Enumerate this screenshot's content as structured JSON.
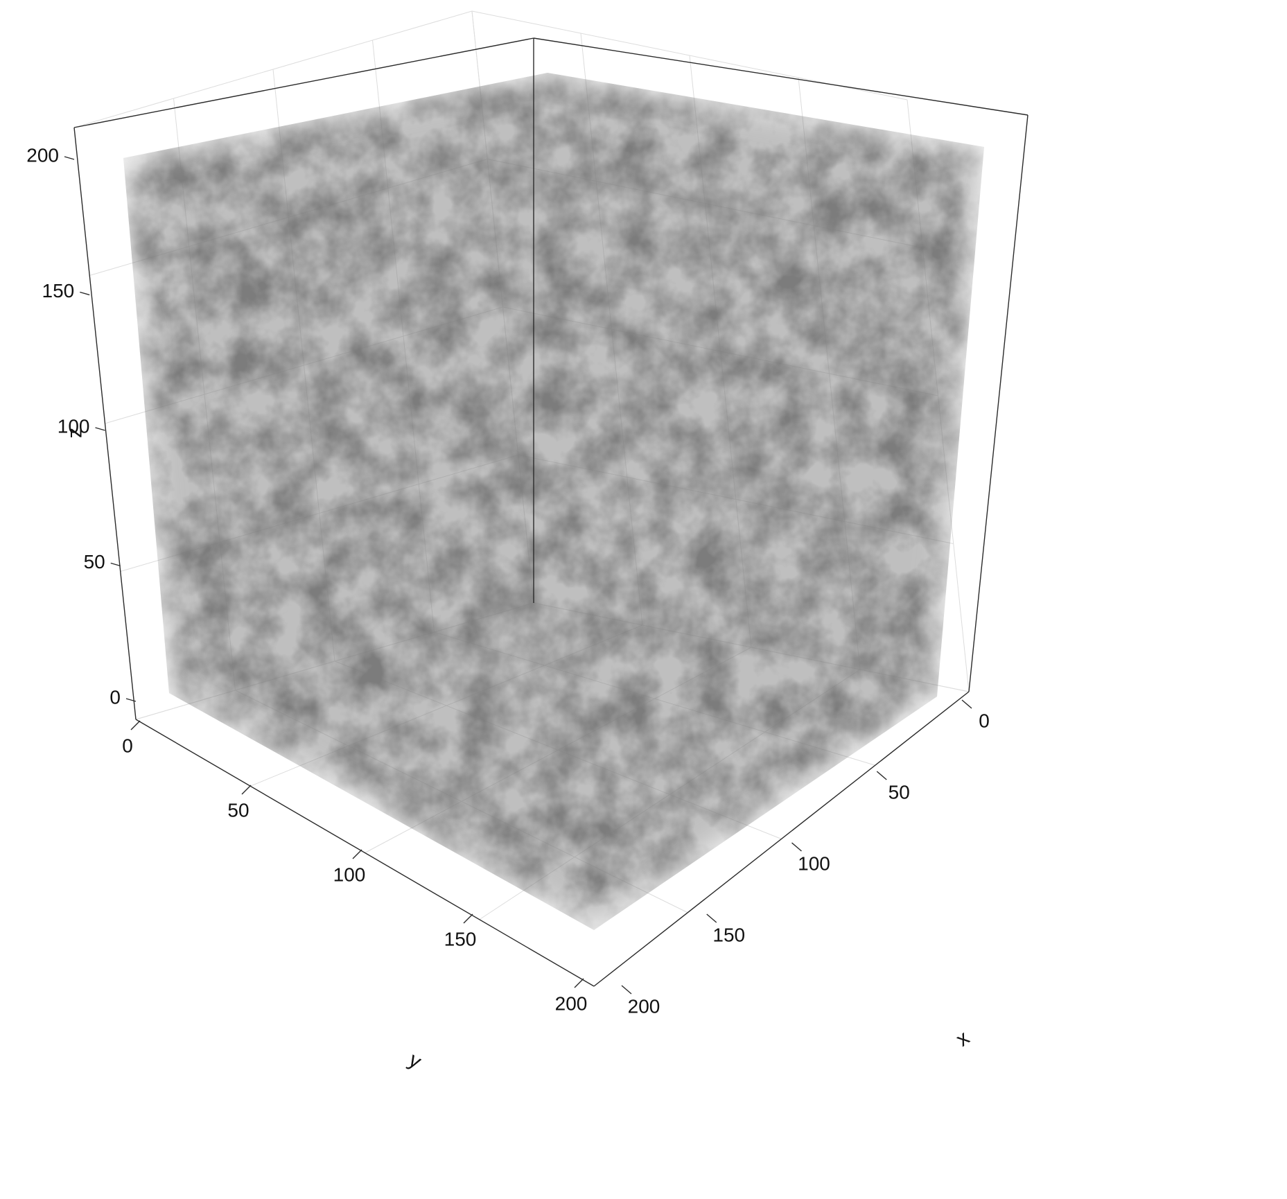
{
  "chart_data": {
    "type": "volume",
    "title": "",
    "xlabel": "x",
    "ylabel": "y",
    "zlabel": "z",
    "xlim": [
      0,
      200
    ],
    "ylim": [
      0,
      200
    ],
    "zlim": [
      0,
      200
    ],
    "x_ticks": [
      "0",
      "50",
      "100",
      "150",
      "200"
    ],
    "y_ticks": [
      "0",
      "50",
      "100",
      "150",
      "200"
    ],
    "z_ticks": [
      "0",
      "50",
      "100",
      "150",
      "200"
    ],
    "grid": true,
    "colors": {
      "volume": "#3a3a3a",
      "frame": "#2a2a2a",
      "grid": "#dcdcdc"
    }
  }
}
